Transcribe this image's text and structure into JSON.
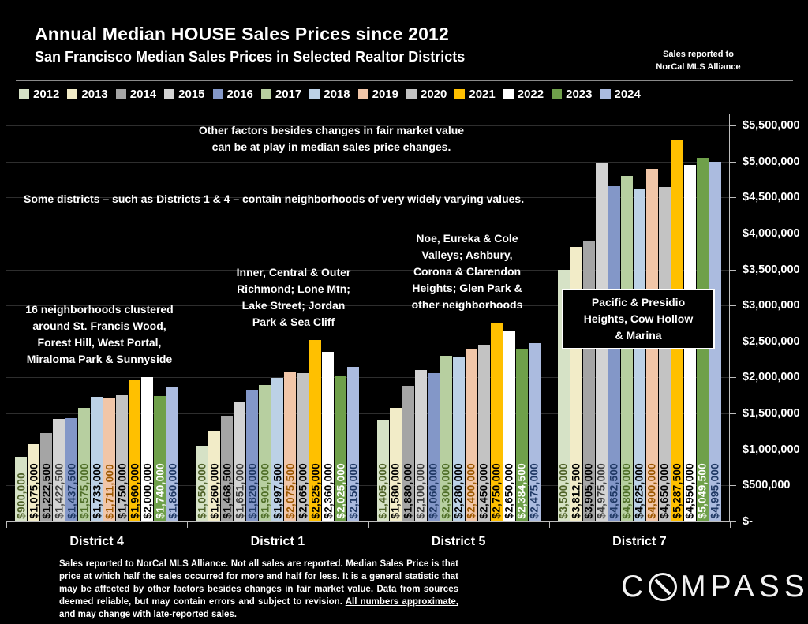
{
  "header": {
    "title": "Annual Median HOUSE Sales Prices since 2012",
    "subtitle": "San Francisco Median Sales Prices in Selected Realtor Districts",
    "note_line1": "Sales reported to",
    "note_line2": "NorCal MLS Alliance"
  },
  "chart_data": {
    "type": "bar",
    "title": "Annual Median HOUSE Sales Prices since 2012",
    "subtitle": "San Francisco Median Sales Prices in Selected Realtor Districts",
    "ylabel": "",
    "xlabel": "",
    "ylim": [
      0,
      5500000
    ],
    "y_tick_interval": 500000,
    "y_tick_labels": [
      "$-",
      "$500,000",
      "$1,000,000",
      "$1,500,000",
      "$2,000,000",
      "$2,500,000",
      "$3,000,000",
      "$3,500,000",
      "$4,000,000",
      "$4,500,000",
      "$5,000,000",
      "$5,500,000"
    ],
    "grid": "horizontal",
    "legend_position": "top",
    "categories": [
      "District 4",
      "District 1",
      "District 5",
      "District 7"
    ],
    "series": [
      {
        "name": "2012",
        "color": "#d6e2c6",
        "label_color": "#4f6228",
        "values": [
          900000,
          1050000,
          1405000,
          3500000
        ]
      },
      {
        "name": "2013",
        "color": "#f2ecc8",
        "label_color": "#000000",
        "values": [
          1075000,
          1260000,
          1580000,
          3812500
        ]
      },
      {
        "name": "2014",
        "color": "#a5a5a5",
        "label_color": "#000000",
        "values": [
          1222500,
          1468500,
          1880000,
          3905000
        ]
      },
      {
        "name": "2015",
        "color": "#d3d3d3",
        "label_color": "#3f3f3f",
        "values": [
          1422500,
          1651000,
          2100000,
          4975000
        ]
      },
      {
        "name": "2016",
        "color": "#8397c8",
        "label_color": "#1f3864",
        "values": [
          1437500,
          1820000,
          2060000,
          4652500
        ]
      },
      {
        "name": "2017",
        "color": "#b7cfa0",
        "label_color": "#4f6f28",
        "values": [
          1575000,
          1901000,
          2300000,
          4800000
        ]
      },
      {
        "name": "2018",
        "color": "#bcd1e6",
        "label_color": "#000000",
        "values": [
          1733000,
          1997500,
          2280000,
          4625000
        ]
      },
      {
        "name": "2019",
        "color": "#f1c6a8",
        "label_color": "#9c5700",
        "values": [
          1711000,
          2075500,
          2400000,
          4900000
        ]
      },
      {
        "name": "2020",
        "color": "#c3c3c3",
        "label_color": "#000000",
        "values": [
          1750000,
          2065000,
          2450000,
          4650000
        ]
      },
      {
        "name": "2021",
        "color": "#ffc000",
        "label_color": "#000000",
        "values": [
          1960000,
          2525000,
          2750000,
          5287500
        ]
      },
      {
        "name": "2022",
        "color": "#ffffff",
        "label_color": "#000000",
        "values": [
          2000000,
          2360000,
          2650000,
          4950000
        ]
      },
      {
        "name": "2023",
        "color": "#6fa04a",
        "label_color": "#ffffff",
        "values": [
          1740000,
          2025000,
          2384500,
          5049500
        ]
      },
      {
        "name": "2024",
        "color": "#abbbdf",
        "label_color": "#1f3864",
        "values": [
          1860000,
          2150000,
          2475000,
          4995000
        ]
      }
    ]
  },
  "annotations": {
    "fair_market": {
      "line1": "Other factors besides changes in fair market value",
      "line2": "can be at play in median sales price changes."
    },
    "varying_values": {
      "text": "Some districts – such as Districts 1 & 4 – contain neighborhoods of very widely varying values."
    },
    "district4": {
      "line1": "16 neighborhoods clustered",
      "line2": "around St. Francis Wood,",
      "line3": "Forest Hill, West Portal,",
      "line4": "Miraloma Park & Sunnyside"
    },
    "district1": {
      "line1": "Inner, Central & Outer",
      "line2": "Richmond; Lone Mtn;",
      "line3": "Lake Street; Jordan",
      "line4": "Park & Sea Cliff"
    },
    "district5": {
      "line1": "Noe, Eureka & Cole",
      "line2": "Valleys; Ashbury,",
      "line3": "Corona & Clarendon",
      "line4": "Heights; Glen Park &",
      "line5": "other neighborhoods"
    },
    "district7": {
      "line1": "Pacific & Presidio",
      "line2": "Heights, Cow Hollow",
      "line3": "& Marina"
    }
  },
  "footer": {
    "text": "Sales reported to NorCal MLS Alliance. Not all sales are reported. Median Sales Price is that price at which half the sales occurred for more and half for less. It is a general statistic that may be affected by other factors besides changes in fair market value. Data from sources deemed reliable, but may contain errors and subject to revision. ",
    "underlined": "All numbers approximate, and may change with late-reported sales",
    "suffix": "."
  },
  "logo": {
    "name": "COMPASS",
    "text_before": "C",
    "text_after": "MPASS"
  }
}
